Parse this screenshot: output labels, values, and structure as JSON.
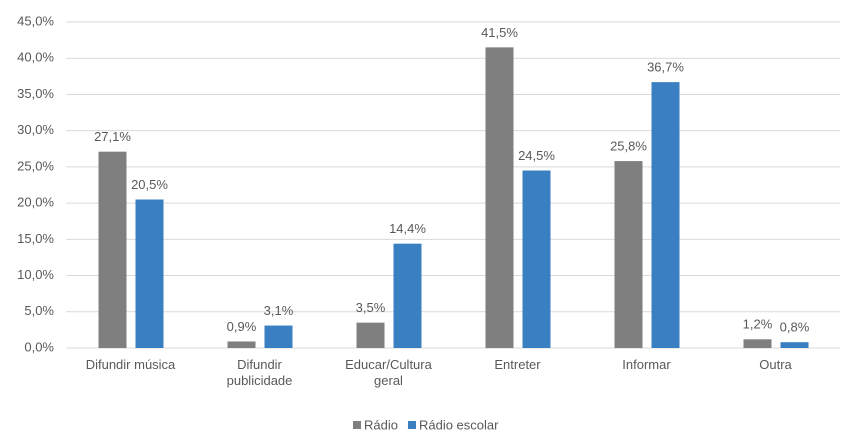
{
  "chart_data": {
    "type": "bar",
    "categories": [
      "Difundir música",
      "Difundir publicidade",
      "Educar/Cultura geral",
      "Entreter",
      "Informar",
      "Outra"
    ],
    "series": [
      {
        "name": "Rádio",
        "color": "#7f7f7f",
        "values": [
          27.1,
          0.9,
          3.5,
          41.5,
          25.8,
          1.2
        ],
        "value_labels": [
          "27,1%",
          "0,9%",
          "3,5%",
          "41,5%",
          "25,8%",
          "1,2%"
        ]
      },
      {
        "name": "Rádio escolar",
        "color": "#3a7fc1",
        "values": [
          20.5,
          3.1,
          14.4,
          24.5,
          36.7,
          0.8
        ],
        "value_labels": [
          "20,5%",
          "3,1%",
          "14,4%",
          "24,5%",
          "36,7%",
          "0,8%"
        ]
      }
    ],
    "ylim": [
      0,
      45
    ],
    "yticks": [
      {
        "value": 0,
        "label": "0,0%"
      },
      {
        "value": 5,
        "label": "5,0%"
      },
      {
        "value": 10,
        "label": "10,0%"
      },
      {
        "value": 15,
        "label": "15,0%"
      },
      {
        "value": 20,
        "label": "20,0%"
      },
      {
        "value": 25,
        "label": "25,0%"
      },
      {
        "value": 30,
        "label": "30,0%"
      },
      {
        "value": 35,
        "label": "35,0%"
      },
      {
        "value": 40,
        "label": "40,0%"
      },
      {
        "value": 45,
        "label": "45,0%"
      }
    ],
    "grid": true,
    "legend": "bottom"
  }
}
